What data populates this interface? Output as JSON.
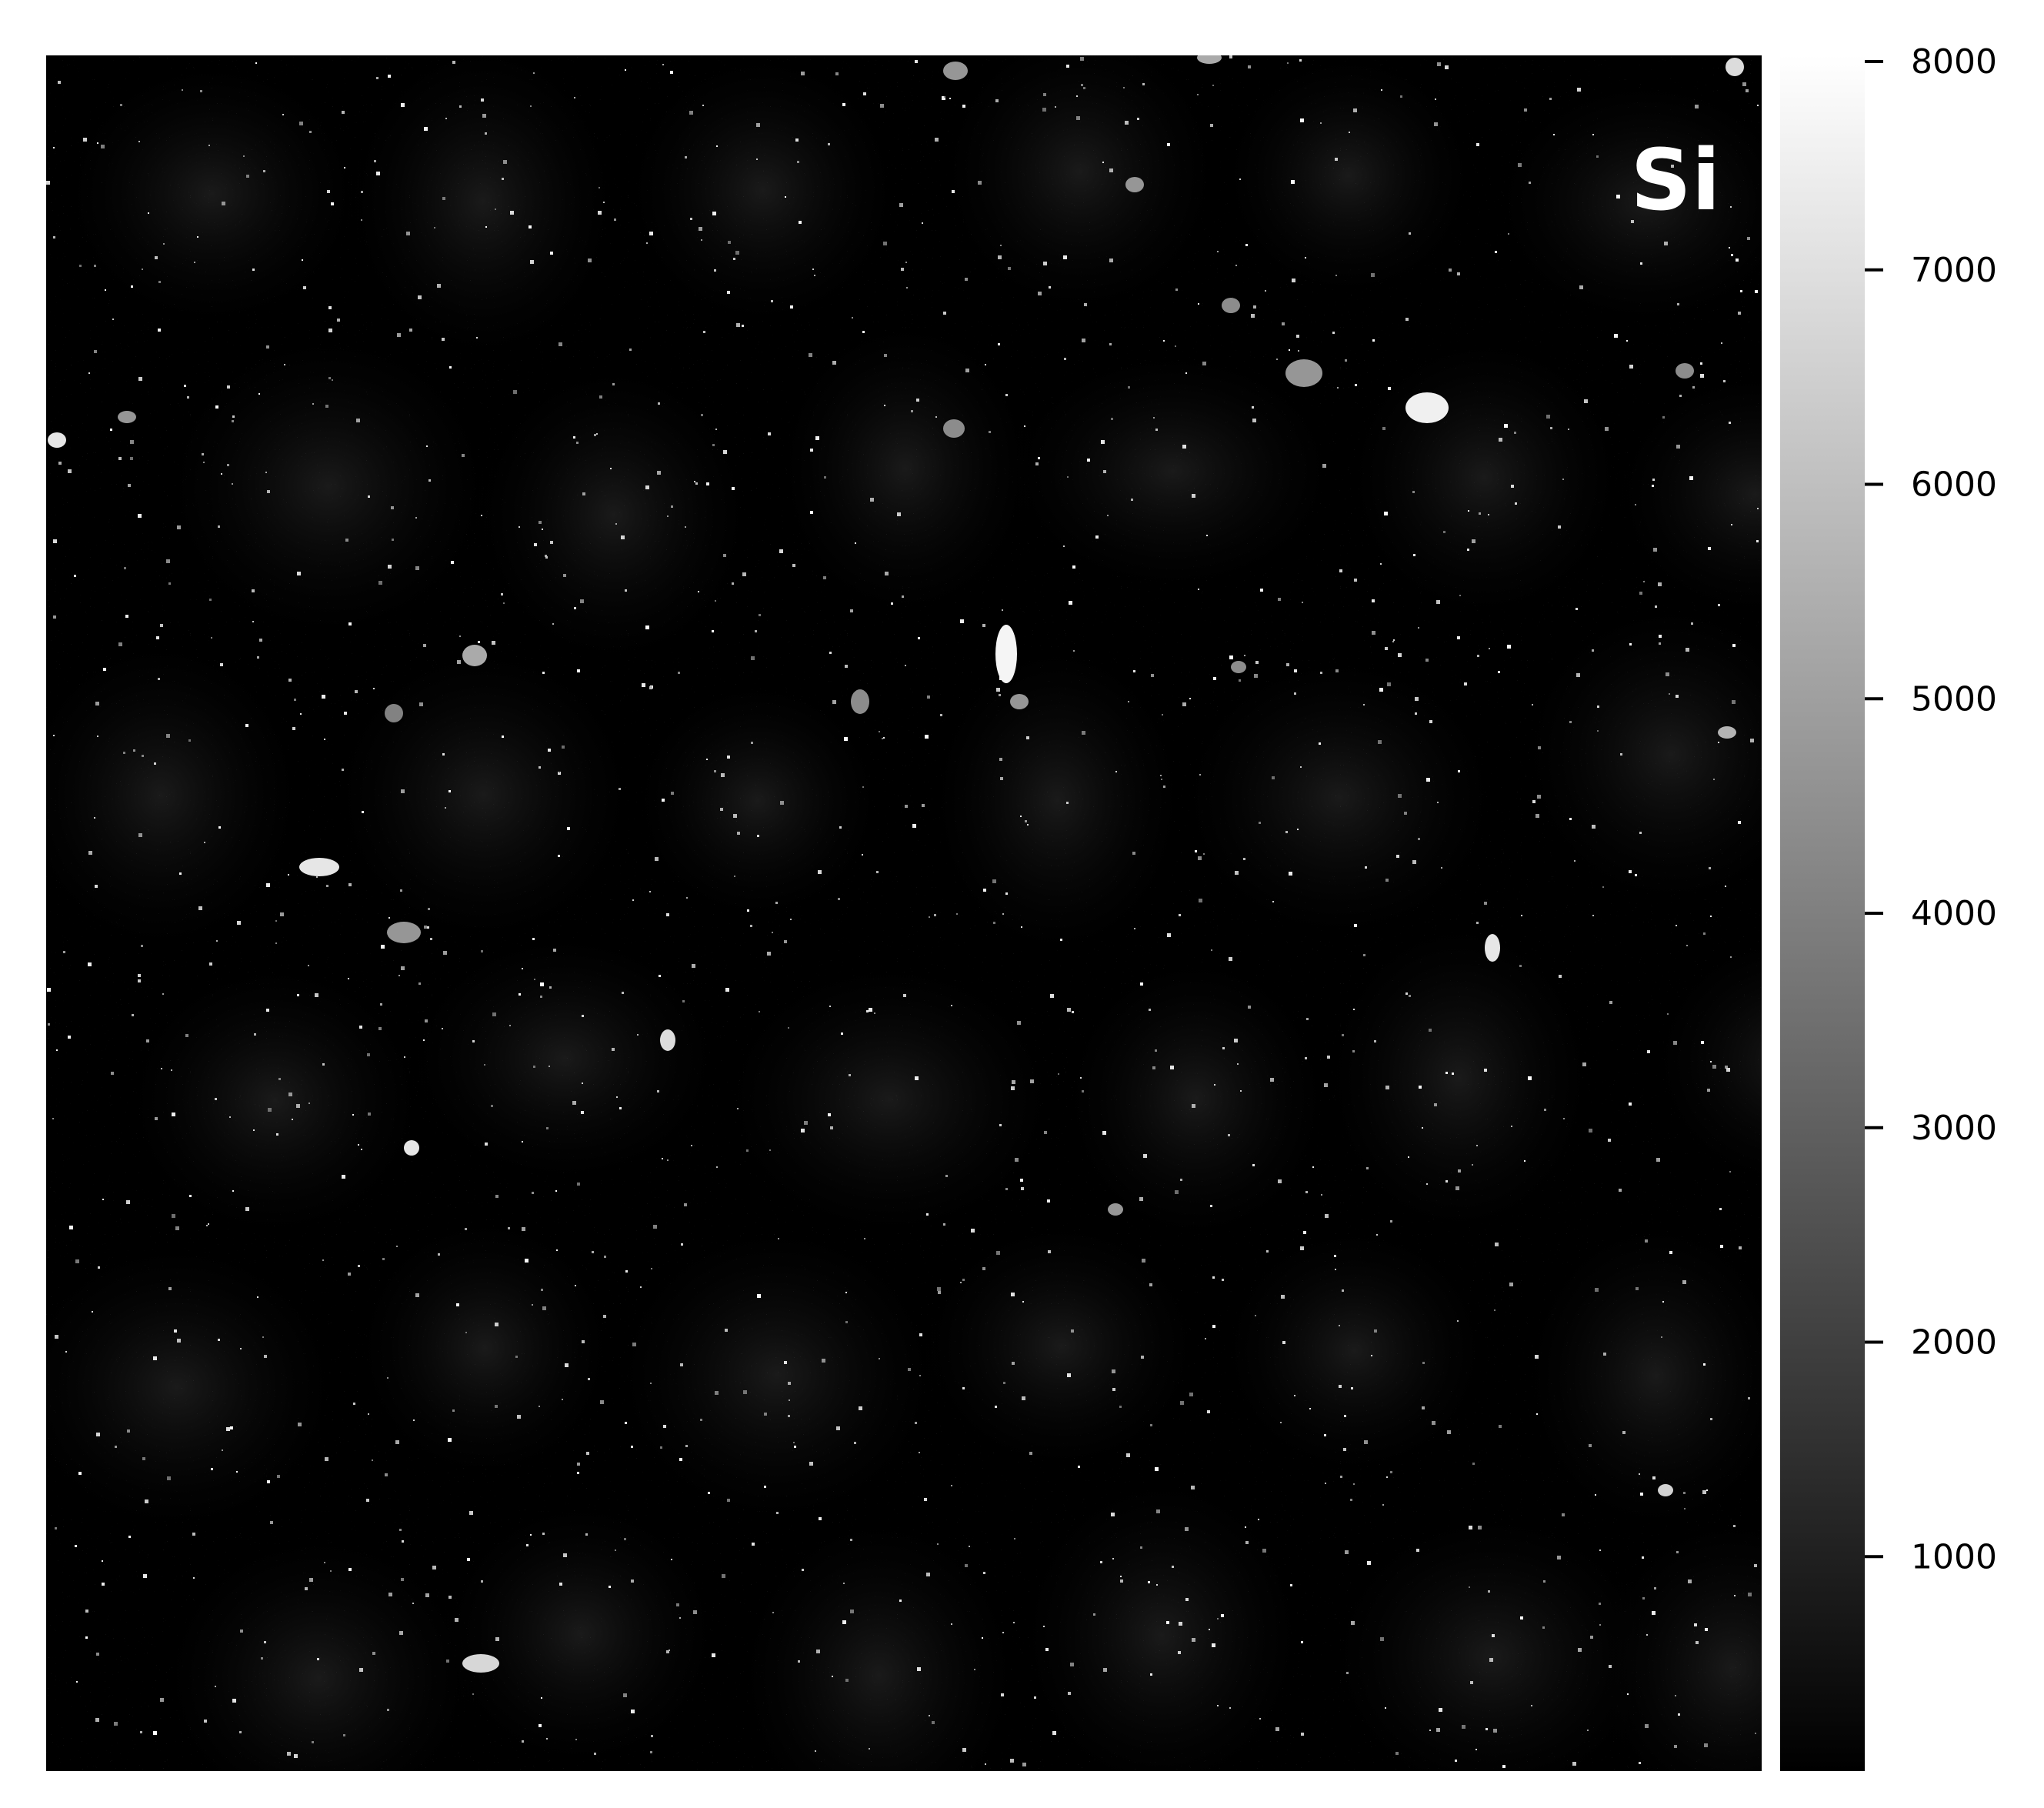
{
  "chart_data": {
    "type": "heatmap",
    "element_label": "Si",
    "colormap": "gray",
    "color_low": "#000000",
    "color_high": "#ffffff",
    "colorbar": {
      "range": [
        0,
        8000
      ],
      "ticks": [
        {
          "value": 1000,
          "label": "1000"
        },
        {
          "value": 2000,
          "label": "2000"
        },
        {
          "value": 3000,
          "label": "3000"
        },
        {
          "value": 4000,
          "label": "4000"
        },
        {
          "value": 5000,
          "label": "5000"
        },
        {
          "value": 6000,
          "label": "6000"
        },
        {
          "value": 7000,
          "label": "7000"
        },
        {
          "value": 8000,
          "label": "8000"
        }
      ]
    }
  }
}
